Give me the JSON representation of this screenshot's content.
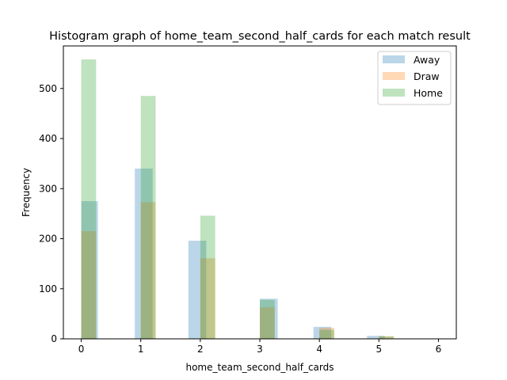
{
  "chart_data": {
    "type": "bar",
    "title": "Histogram graph of home_team_second_half_cards for each match result",
    "xlabel": "home_team_second_half_cards",
    "ylabel": "Frequency",
    "xlim": [
      -0.3,
      6.3
    ],
    "ylim": [
      0,
      585
    ],
    "xticks": [
      0,
      1,
      2,
      3,
      4,
      5,
      6
    ],
    "yticks": [
      0,
      100,
      200,
      300,
      400,
      500
    ],
    "grid": false,
    "legend_position": "top-right",
    "series": [
      {
        "name": "Away",
        "color": "#1f77b4",
        "opacity": 0.3,
        "bins": [
          {
            "x0": 0.0,
            "x1": 0.28,
            "value": 275
          },
          {
            "x0": 0.9,
            "x1": 1.2,
            "value": 340
          },
          {
            "x0": 1.8,
            "x1": 2.1,
            "value": 196
          },
          {
            "x0": 3.0,
            "x1": 3.3,
            "value": 80
          },
          {
            "x0": 3.9,
            "x1": 4.2,
            "value": 24
          },
          {
            "x0": 4.8,
            "x1": 5.1,
            "value": 6
          }
        ]
      },
      {
        "name": "Draw",
        "color": "#ff7f0e",
        "opacity": 0.3,
        "bins": [
          {
            "x0": 0.0,
            "x1": 0.25,
            "value": 215
          },
          {
            "x0": 1.0,
            "x1": 1.25,
            "value": 273
          },
          {
            "x0": 2.0,
            "x1": 2.25,
            "value": 161
          },
          {
            "x0": 3.0,
            "x1": 3.25,
            "value": 63
          },
          {
            "x0": 4.0,
            "x1": 4.25,
            "value": 22
          },
          {
            "x0": 5.0,
            "x1": 5.25,
            "value": 5
          }
        ]
      },
      {
        "name": "Home",
        "color": "#2ca02c",
        "opacity": 0.3,
        "bins": [
          {
            "x0": 0.0,
            "x1": 0.25,
            "value": 558
          },
          {
            "x0": 1.0,
            "x1": 1.25,
            "value": 485
          },
          {
            "x0": 2.0,
            "x1": 2.25,
            "value": 246
          },
          {
            "x0": 3.0,
            "x1": 3.25,
            "value": 78
          },
          {
            "x0": 4.0,
            "x1": 4.25,
            "value": 18
          },
          {
            "x0": 5.0,
            "x1": 5.25,
            "value": 5
          }
        ]
      }
    ]
  }
}
